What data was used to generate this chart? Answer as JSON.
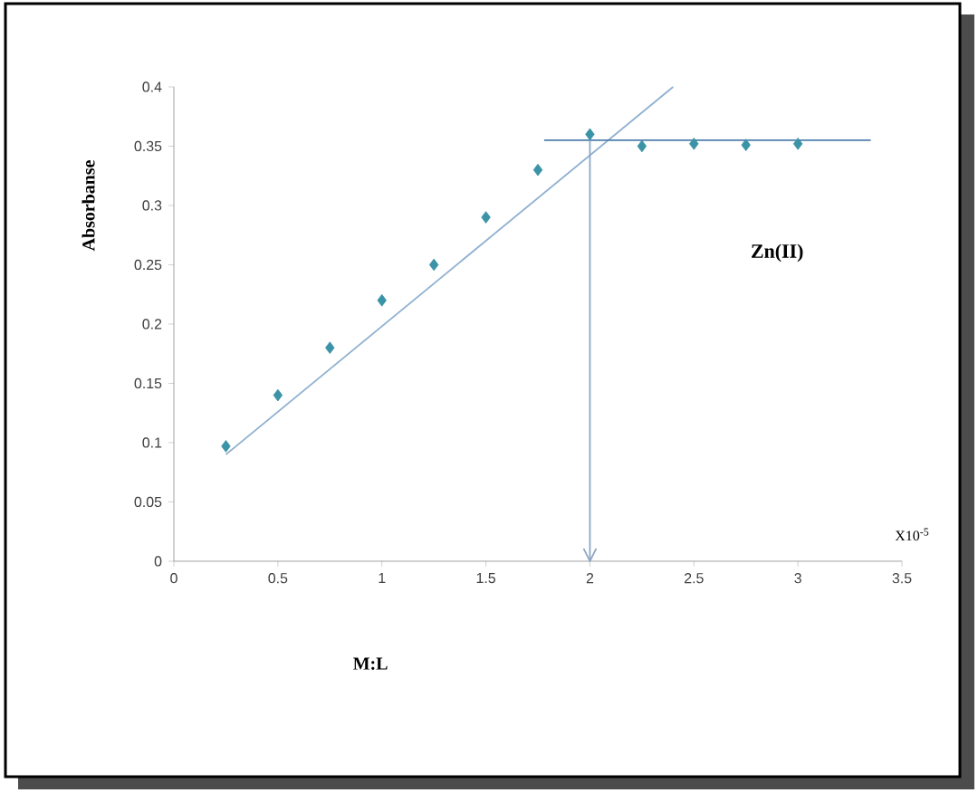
{
  "chart_data": {
    "type": "scatter",
    "xlabel": "M:L",
    "ylabel": "Absorbanse",
    "annotations": [
      "Zn(II)",
      "X10$^{-5}$"
    ],
    "series": [
      {
        "color": "#3a93a6",
        "x": [
          0.25,
          0.5,
          0.75,
          1,
          1.25,
          1.5,
          1.75,
          2,
          2.25,
          2.5,
          2.75,
          3
        ],
        "values": [
          0.097,
          0.14,
          0.18,
          0.22,
          0.25,
          0.29,
          0.33,
          0.36,
          0.35,
          0.352,
          0.351,
          0.352
        ]
      },
      {
        "type": "line",
        "marker": "none",
        "color": "#8fb0d0",
        "x": [
          0.25,
          2.4
        ],
        "values": [
          0.09,
          0.4
        ]
      },
      {
        "type": "line",
        "marker": "none",
        "color": "#4f7fae",
        "x": [
          1.78,
          3.35
        ],
        "values": [
          0.355,
          0.355
        ]
      },
      {
        "type": "line",
        "marker": "none",
        "color": "#8fa6c4",
        "x": [
          2,
          2
        ],
        "values": [
          0.355,
          0
        ]
      }
    ],
    "xlim": [
      0,
      3.5
    ],
    "ylim": [
      0,
      0.4
    ],
    "xticks": [
      0,
      0.5,
      1,
      1.5,
      2,
      2.5,
      3,
      3.5
    ],
    "yticks": [
      0,
      0.05,
      0.1,
      0.15,
      0.2,
      0.25,
      0.3,
      0.35,
      0.4
    ],
    "grid": false,
    "marker": "diamond",
    "line_style": "solid"
  }
}
